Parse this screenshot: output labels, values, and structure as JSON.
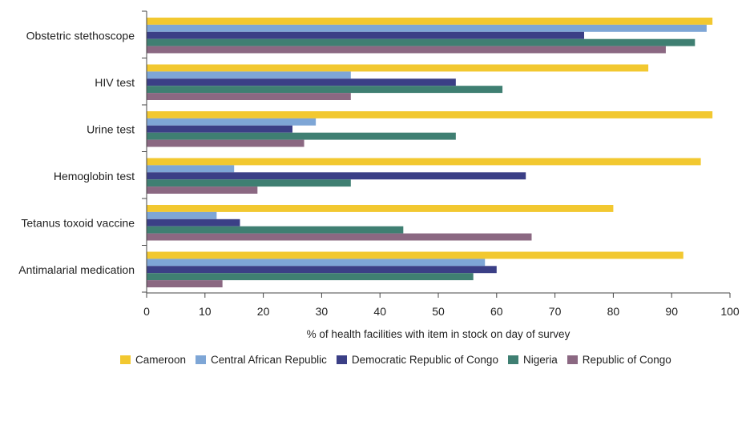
{
  "chart_data": {
    "type": "bar",
    "orientation": "horizontal",
    "categories": [
      "Obstetric stethoscope",
      "HIV test",
      "Urine test",
      "Hemoglobin test",
      "Tetanus toxoid vaccine",
      "Antimalarial medication"
    ],
    "series": [
      {
        "name": "Cameroon",
        "color": "#f2c830",
        "values": [
          97,
          86,
          97,
          95,
          80,
          92
        ]
      },
      {
        "name": "Central African Republic",
        "color": "#7ea6d6",
        "values": [
          96,
          35,
          29,
          15,
          12,
          58
        ]
      },
      {
        "name": "Democratic Republic of Congo",
        "color": "#3b3f86",
        "values": [
          75,
          53,
          25,
          65,
          16,
          60
        ]
      },
      {
        "name": "Nigeria",
        "color": "#3f7f72",
        "values": [
          94,
          61,
          53,
          35,
          44,
          56
        ]
      },
      {
        "name": "Republic of Congo",
        "color": "#8b6882",
        "values": [
          89,
          35,
          27,
          19,
          66,
          13
        ]
      }
    ],
    "xlim": [
      0,
      100
    ],
    "xticks": [
      0,
      10,
      20,
      30,
      40,
      50,
      60,
      70,
      80,
      90,
      100
    ],
    "xlabel": "% of health facilities with item in stock on day of survey",
    "legend_position": "bottom",
    "grid": false
  }
}
